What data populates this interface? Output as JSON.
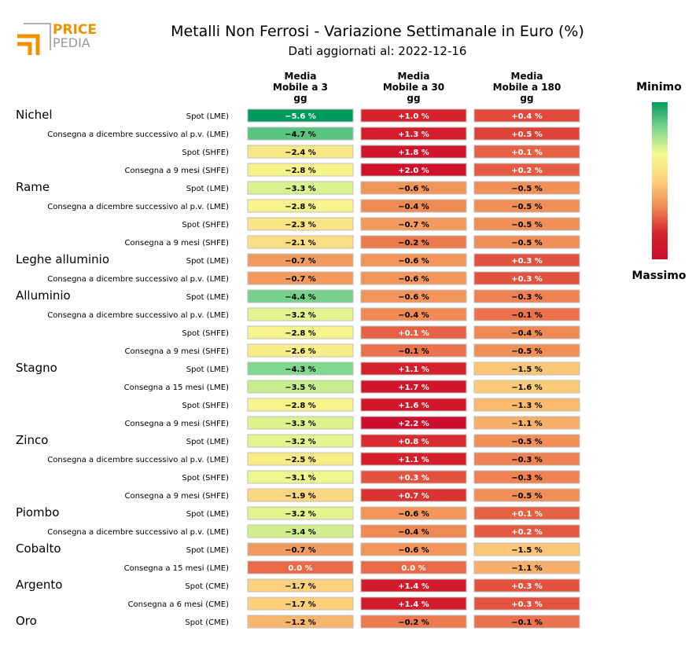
{
  "logo": {
    "line1": "PRICE",
    "line2": "PEDIA",
    "colors": {
      "primary": "#f39200",
      "secondary": "#9a9a9a"
    }
  },
  "chart_data": {
    "type": "table",
    "title": "Metalli Non Ferrosi - Variazione Settimanale in Euro (%)",
    "subtitle": "Dati aggiornati al: 2022-12-16",
    "columns": [
      [
        "Media",
        "Mobile a 3",
        "gg"
      ],
      [
        "Media",
        "Mobile a 30",
        "gg"
      ],
      [
        "Media",
        "Mobile a 180",
        "gg"
      ]
    ],
    "value_suffix": " %",
    "color_scale": {
      "label_min": "Minimo",
      "label_max": "Massimo",
      "min": -5.6,
      "max": 2.2,
      "colors": [
        "#009a5e",
        "#7fd68f",
        "#f6fa8f",
        "#fdd17c",
        "#f08a55",
        "#d6232c",
        "#cc0d2b"
      ]
    },
    "groups": [
      {
        "name": "Nichel",
        "rows": [
          {
            "label": "Spot (LME)",
            "values": [
              -5.6,
              1.0,
              0.4
            ]
          },
          {
            "label": "Consegna a dicembre successivo al p.v. (LME)",
            "values": [
              -4.7,
              1.3,
              0.5
            ]
          },
          {
            "label": "Spot (SHFE)",
            "values": [
              -2.4,
              1.8,
              0.1
            ]
          },
          {
            "label": "Consegna a 9 mesi (SHFE)",
            "values": [
              -2.8,
              2.0,
              0.2
            ]
          }
        ]
      },
      {
        "name": "Rame",
        "rows": [
          {
            "label": "Spot (LME)",
            "values": [
              -3.3,
              -0.6,
              -0.5
            ]
          },
          {
            "label": "Consegna a dicembre successivo al p.v. (LME)",
            "values": [
              -2.8,
              -0.4,
              -0.5
            ]
          },
          {
            "label": "Spot (SHFE)",
            "values": [
              -2.3,
              -0.7,
              -0.5
            ]
          },
          {
            "label": "Consegna a 9 mesi (SHFE)",
            "values": [
              -2.1,
              -0.2,
              -0.5
            ]
          }
        ]
      },
      {
        "name": "Leghe alluminio",
        "rows": [
          {
            "label": "Spot (LME)",
            "values": [
              -0.7,
              -0.6,
              0.3
            ]
          },
          {
            "label": "Consegna a dicembre successivo al p.v. (LME)",
            "values": [
              -0.7,
              -0.6,
              0.3
            ]
          }
        ]
      },
      {
        "name": "Alluminio",
        "rows": [
          {
            "label": "Spot (LME)",
            "values": [
              -4.4,
              -0.6,
              -0.3
            ]
          },
          {
            "label": "Consegna a dicembre successivo al p.v. (LME)",
            "values": [
              -3.2,
              -0.4,
              -0.1
            ]
          },
          {
            "label": "Spot (SHFE)",
            "values": [
              -2.8,
              0.1,
              -0.4
            ]
          },
          {
            "label": "Consegna a 9 mesi (SHFE)",
            "values": [
              -2.6,
              -0.1,
              -0.5
            ]
          }
        ]
      },
      {
        "name": "Stagno",
        "rows": [
          {
            "label": "Spot (LME)",
            "values": [
              -4.3,
              1.1,
              -1.5
            ]
          },
          {
            "label": "Consegna a 15 mesi (LME)",
            "values": [
              -3.5,
              1.7,
              -1.6
            ]
          },
          {
            "label": "Spot (SHFE)",
            "values": [
              -2.8,
              1.6,
              -1.3
            ]
          },
          {
            "label": "Consegna a 9 mesi (SHFE)",
            "values": [
              -3.3,
              2.2,
              -1.1
            ]
          }
        ]
      },
      {
        "name": "Zinco",
        "rows": [
          {
            "label": "Spot (LME)",
            "values": [
              -3.2,
              0.8,
              -0.5
            ]
          },
          {
            "label": "Consegna a dicembre successivo al p.v. (LME)",
            "values": [
              -2.5,
              1.1,
              -0.3
            ]
          },
          {
            "label": "Spot (SHFE)",
            "values": [
              -3.1,
              0.3,
              -0.3
            ]
          },
          {
            "label": "Consegna a 9 mesi (SHFE)",
            "values": [
              -1.9,
              0.7,
              -0.5
            ]
          }
        ]
      },
      {
        "name": "Piombo",
        "rows": [
          {
            "label": "Spot (LME)",
            "values": [
              -3.2,
              -0.6,
              0.1
            ]
          },
          {
            "label": "Consegna a dicembre successivo al p.v. (LME)",
            "values": [
              -3.4,
              -0.4,
              0.2
            ]
          }
        ]
      },
      {
        "name": "Cobalto",
        "rows": [
          {
            "label": "Spot (LME)",
            "values": [
              -0.7,
              -0.6,
              -1.5
            ]
          },
          {
            "label": "Consegna a 15 mesi (LME)",
            "values": [
              0.0,
              0.0,
              -1.1
            ]
          }
        ]
      },
      {
        "name": "Argento",
        "rows": [
          {
            "label": "Spot (CME)",
            "values": [
              -1.7,
              1.4,
              0.3
            ]
          },
          {
            "label": "Consegna a 6 mesi (CME)",
            "values": [
              -1.7,
              1.4,
              0.3
            ]
          }
        ]
      },
      {
        "name": "Oro",
        "rows": [
          {
            "label": "Spot (CME)",
            "values": [
              -1.2,
              -0.2,
              -0.1
            ]
          }
        ]
      }
    ]
  }
}
